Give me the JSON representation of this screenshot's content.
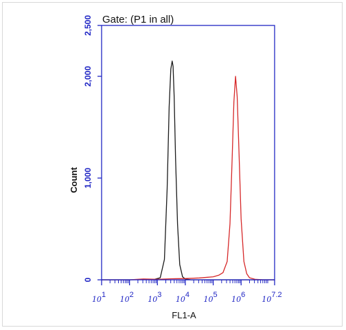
{
  "chart_data": {
    "type": "line",
    "title": "Gate: (P1 in all)",
    "xlabel": "FL1-A",
    "ylabel": "Count",
    "x_scale": "log10",
    "xlim": [
      1,
      7.2
    ],
    "ylim": [
      0,
      2500
    ],
    "y_ticks": [
      {
        "value": 0,
        "label": "0"
      },
      {
        "value": 1000,
        "label": "1,000"
      },
      {
        "value": 2000,
        "label": "2,000"
      },
      {
        "value": 2500,
        "label": "2,500"
      }
    ],
    "x_ticks": [
      {
        "value": 1,
        "base": "10",
        "exp": "1"
      },
      {
        "value": 2,
        "base": "10",
        "exp": "2"
      },
      {
        "value": 3,
        "base": "10",
        "exp": "3"
      },
      {
        "value": 4,
        "base": "10",
        "exp": "4"
      },
      {
        "value": 5,
        "base": "10",
        "exp": "5"
      },
      {
        "value": 6,
        "base": "10",
        "exp": "6"
      },
      {
        "value": 7.2,
        "base": "10",
        "exp": "7.2"
      }
    ],
    "grid": false,
    "legend": "none",
    "series": [
      {
        "color": "#1a1a1a",
        "x": [
          1.0,
          2.0,
          2.9,
          3.1,
          3.25,
          3.35,
          3.42,
          3.48,
          3.53,
          3.56,
          3.6,
          3.65,
          3.72,
          3.8,
          3.9,
          4.0,
          4.2,
          5.0,
          7.2
        ],
        "y": [
          0,
          0,
          5,
          20,
          200,
          900,
          1700,
          2070,
          2150,
          2100,
          1800,
          1200,
          550,
          150,
          30,
          8,
          0,
          0,
          0
        ]
      },
      {
        "color": "#d62728",
        "x": [
          1.0,
          2.0,
          2.5,
          3.0,
          3.5,
          4.0,
          4.5,
          4.8,
          5.0,
          5.2,
          5.35,
          5.5,
          5.6,
          5.68,
          5.74,
          5.8,
          5.86,
          5.93,
          6.0,
          6.1,
          6.2,
          6.3,
          6.5,
          6.8,
          7.2
        ],
        "y": [
          0,
          0,
          8,
          5,
          10,
          12,
          18,
          25,
          30,
          45,
          70,
          180,
          550,
          1200,
          1750,
          2000,
          1800,
          1200,
          600,
          180,
          60,
          20,
          5,
          0,
          0
        ]
      }
    ]
  },
  "axis_color": "#1f25c4"
}
